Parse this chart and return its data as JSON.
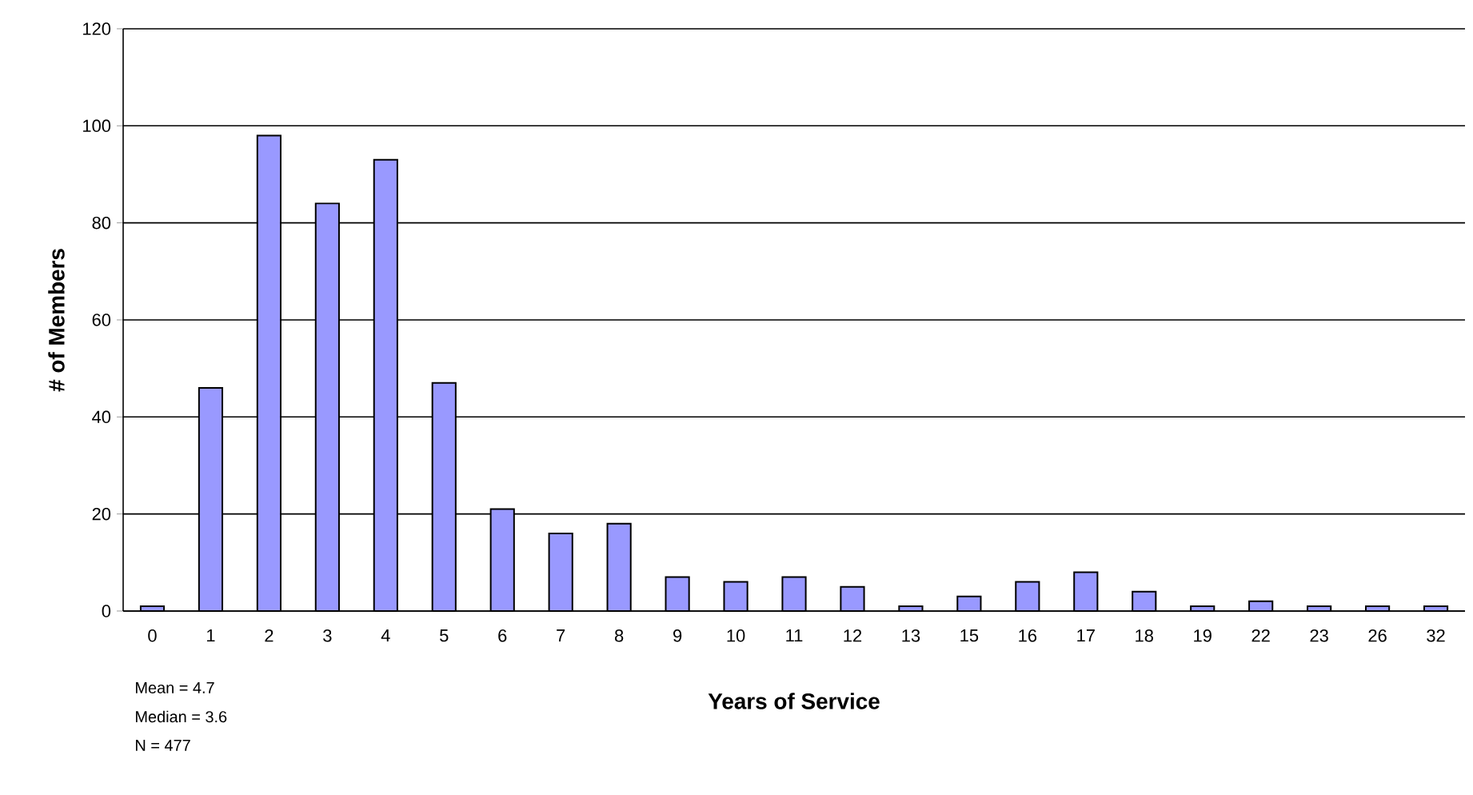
{
  "chart_data": {
    "type": "bar",
    "xlabel": "Years of Service",
    "ylabel": "# of Members",
    "categories": [
      "0",
      "1",
      "2",
      "3",
      "4",
      "5",
      "6",
      "7",
      "8",
      "9",
      "10",
      "11",
      "12",
      "13",
      "15",
      "16",
      "17",
      "18",
      "19",
      "22",
      "23",
      "26",
      "32"
    ],
    "values": [
      1,
      46,
      98,
      84,
      93,
      47,
      21,
      16,
      18,
      7,
      6,
      7,
      5,
      1,
      3,
      6,
      8,
      4,
      1,
      2,
      1,
      1,
      1
    ],
    "color": "#9999ff",
    "ylim": [
      0,
      120
    ],
    "yticks": [
      0,
      20,
      40,
      60,
      80,
      100,
      120
    ],
    "grid": "y",
    "annotations": [
      "Mean = 4.7",
      "Median = 3.6",
      "N = 477"
    ]
  }
}
